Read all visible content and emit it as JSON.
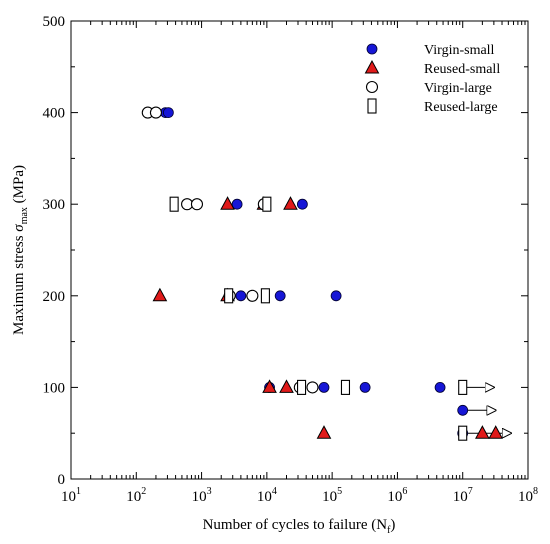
{
  "chart_data": {
    "type": "scatter",
    "title": "",
    "xlabel": "Number of cycles to failure (N",
    "xlabel_sub": "f",
    "xlabel_end": ")",
    "ylabel": "Maximum stress ",
    "ylabel_sym": "σ",
    "ylabel_sub": "max",
    "ylabel_end": " (MPa)",
    "x_scale": "log",
    "xlim": [
      10,
      100000000
    ],
    "ylim": [
      0,
      500
    ],
    "x_ticks": [
      {
        "value": 10,
        "label": "10",
        "exp": "1"
      },
      {
        "value": 100,
        "label": "10",
        "exp": "2"
      },
      {
        "value": 1000,
        "label": "10",
        "exp": "3"
      },
      {
        "value": 10000,
        "label": "10",
        "exp": "4"
      },
      {
        "value": 100000,
        "label": "10",
        "exp": "5"
      },
      {
        "value": 1000000,
        "label": "10",
        "exp": "6"
      },
      {
        "value": 10000000,
        "label": "10",
        "exp": "7"
      },
      {
        "value": 100000000,
        "label": "10",
        "exp": "8"
      }
    ],
    "y_ticks": [
      0,
      100,
      200,
      300,
      400,
      500
    ],
    "grid": false,
    "legend_position": "top-right",
    "series": [
      {
        "name": "Virgin-small",
        "marker": "circle-filled",
        "color": "#1616d6",
        "points": [
          [
            280,
            400
          ],
          [
            310,
            400
          ],
          [
            3500,
            300
          ],
          [
            35000,
            300
          ],
          [
            4000,
            200
          ],
          [
            16000,
            200
          ],
          [
            115000,
            200
          ],
          [
            11000,
            100
          ],
          [
            75000,
            100
          ],
          [
            320000,
            100
          ],
          [
            4500000,
            100
          ],
          [
            10000000,
            75
          ],
          [
            10000000,
            50
          ]
        ]
      },
      {
        "name": "Reused-small",
        "marker": "triangle-filled",
        "color": "#e01a1a",
        "points": [
          [
            230,
            200
          ],
          [
            2500,
            200
          ],
          [
            2500,
            300
          ],
          [
            9000,
            300
          ],
          [
            23000,
            300
          ],
          [
            11000,
            100
          ],
          [
            20000,
            100
          ],
          [
            75000,
            50
          ],
          [
            20000000,
            50
          ],
          [
            32000000,
            50
          ]
        ]
      },
      {
        "name": "Virgin-large",
        "marker": "circle-open",
        "color": "#000000",
        "points": [
          [
            150,
            400
          ],
          [
            200,
            400
          ],
          [
            600,
            300
          ],
          [
            850,
            300
          ],
          [
            9000,
            300
          ],
          [
            2700,
            200
          ],
          [
            6000,
            200
          ],
          [
            32000,
            100
          ],
          [
            50000,
            100
          ]
        ]
      },
      {
        "name": "Reused-large",
        "marker": "rect-open",
        "color": "#000000",
        "points": [
          [
            380,
            300
          ],
          [
            10000,
            300
          ],
          [
            2600,
            200
          ],
          [
            9500,
            200
          ],
          [
            34000,
            100
          ],
          [
            160000,
            100
          ],
          [
            10000000,
            100
          ],
          [
            10000000,
            50
          ]
        ]
      }
    ],
    "runouts": [
      {
        "marker": "rect-open",
        "from": [
          10000000,
          100
        ],
        "to": [
          30000000,
          100
        ]
      },
      {
        "marker": "circle-filled",
        "from": [
          10000000,
          75
        ],
        "to": [
          32000000,
          75
        ]
      },
      {
        "marker": "circle-filled",
        "from": [
          10000000,
          50
        ],
        "to": [
          55000000,
          50
        ]
      }
    ]
  }
}
